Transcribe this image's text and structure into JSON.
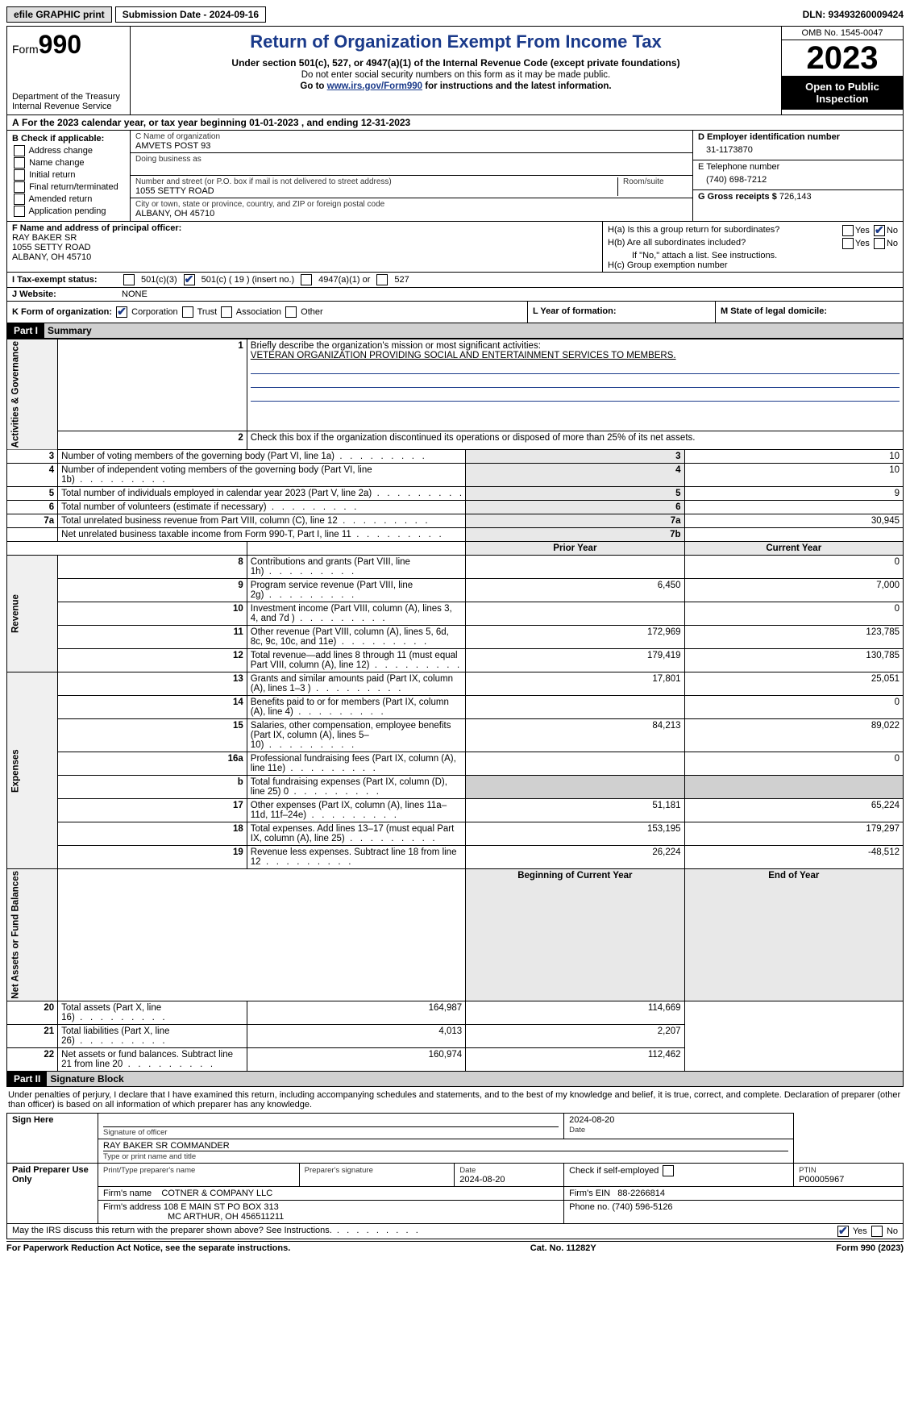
{
  "topbar": {
    "efile": "efile GRAPHIC print",
    "submission": "Submission Date - 2024-09-16",
    "dln": "DLN: 93493260009424"
  },
  "header": {
    "form_label": "Form",
    "form_no": "990",
    "dept": "Department of the Treasury Internal Revenue Service",
    "title": "Return of Organization Exempt From Income Tax",
    "subtitle": "Under section 501(c), 527, or 4947(a)(1) of the Internal Revenue Code (except private foundations)",
    "note1": "Do not enter social security numbers on this form as it may be made public.",
    "note2_a": "Go to ",
    "note2_link": "www.irs.gov/Form990",
    "note2_b": " for instructions and the latest information.",
    "omb": "OMB No. 1545-0047",
    "year": "2023",
    "open": "Open to Public Inspection"
  },
  "line_a": "For the 2023 calendar year, or tax year beginning 01-01-2023    , and ending 12-31-2023",
  "box_b": {
    "label": "B Check if applicable:",
    "items": [
      "Address change",
      "Name change",
      "Initial return",
      "Final return/terminated",
      "Amended return",
      "Application pending"
    ]
  },
  "box_c": {
    "name_label": "C Name of organization",
    "name": "AMVETS POST 93",
    "dba_label": "Doing business as",
    "street_label": "Number and street (or P.O. box if mail is not delivered to street address)",
    "room_label": "Room/suite",
    "street": "1055 SETTY ROAD",
    "city_label": "City or town, state or province, country, and ZIP or foreign postal code",
    "city": "ALBANY, OH  45710"
  },
  "box_d": {
    "label": "D Employer identification number",
    "val": "31-1173870"
  },
  "box_e": {
    "label": "E Telephone number",
    "val": "(740) 698-7212"
  },
  "box_g": {
    "label": "G Gross receipts $",
    "val": "726,143"
  },
  "box_f": {
    "label": "F  Name and address of principal officer:",
    "name": "RAY BAKER SR",
    "addr1": "1055 SETTY ROAD",
    "addr2": "ALBANY, OH  45710"
  },
  "box_h": {
    "ha": "H(a)  Is this a group return for subordinates?",
    "hb": "H(b)  Are all subordinates included?",
    "hb_note": "If \"No,\" attach a list. See instructions.",
    "hc": "H(c)  Group exemption number",
    "yes": "Yes",
    "no": "No"
  },
  "line_i": {
    "label": "I   Tax-exempt status:",
    "c3": "501(c)(3)",
    "c": "501(c) ( 19 ) (insert no.)",
    "a1": "4947(a)(1) or",
    "s527": "527"
  },
  "line_j": {
    "label": "J   Website:",
    "val": "NONE"
  },
  "line_k": {
    "label": "K Form of organization:",
    "corp": "Corporation",
    "trust": "Trust",
    "assoc": "Association",
    "other": "Other"
  },
  "line_l": "L Year of formation:",
  "line_m": "M State of legal domicile:",
  "part1": {
    "tag": "Part I",
    "title": "Summary"
  },
  "summary": {
    "q1_label": "Briefly describe the organization's mission or most significant activities:",
    "q1_text": "VETERAN ORGANIZATION PROVIDING SOCIAL AND ENTERTAINMENT SERVICES TO MEMBERS.",
    "q2": "Check this box      if the organization discontinued its operations or disposed of more than 25% of its net assets.",
    "rows_top": [
      {
        "n": "3",
        "t": "Number of voting members of the governing body (Part VI, line 1a)",
        "b": "3",
        "v": "10"
      },
      {
        "n": "4",
        "t": "Number of independent voting members of the governing body (Part VI, line 1b)",
        "b": "4",
        "v": "10"
      },
      {
        "n": "5",
        "t": "Total number of individuals employed in calendar year 2023 (Part V, line 2a)",
        "b": "5",
        "v": "9"
      },
      {
        "n": "6",
        "t": "Total number of volunteers (estimate if necessary)",
        "b": "6",
        "v": ""
      },
      {
        "n": "7a",
        "t": "Total unrelated business revenue from Part VIII, column (C), line 12",
        "b": "7a",
        "v": "30,945"
      },
      {
        "n": "",
        "t": "Net unrelated business taxable income from Form 990-T, Part I, line 11",
        "b": "7b",
        "v": ""
      }
    ],
    "hdr_prior": "Prior Year",
    "hdr_curr": "Current Year",
    "hdr_beg": "Beginning of Current Year",
    "hdr_end": "End of Year",
    "rev": [
      {
        "n": "8",
        "t": "Contributions and grants (Part VIII, line 1h)",
        "p": "",
        "c": "0"
      },
      {
        "n": "9",
        "t": "Program service revenue (Part VIII, line 2g)",
        "p": "6,450",
        "c": "7,000"
      },
      {
        "n": "10",
        "t": "Investment income (Part VIII, column (A), lines 3, 4, and 7d )",
        "p": "",
        "c": "0"
      },
      {
        "n": "11",
        "t": "Other revenue (Part VIII, column (A), lines 5, 6d, 8c, 9c, 10c, and 11e)",
        "p": "172,969",
        "c": "123,785"
      },
      {
        "n": "12",
        "t": "Total revenue—add lines 8 through 11 (must equal Part VIII, column (A), line 12)",
        "p": "179,419",
        "c": "130,785"
      }
    ],
    "exp": [
      {
        "n": "13",
        "t": "Grants and similar amounts paid (Part IX, column (A), lines 1–3 )",
        "p": "17,801",
        "c": "25,051"
      },
      {
        "n": "14",
        "t": "Benefits paid to or for members (Part IX, column (A), line 4)",
        "p": "",
        "c": "0"
      },
      {
        "n": "15",
        "t": "Salaries, other compensation, employee benefits (Part IX, column (A), lines 5–10)",
        "p": "84,213",
        "c": "89,022"
      },
      {
        "n": "16a",
        "t": "Professional fundraising fees (Part IX, column (A), line 11e)",
        "p": "",
        "c": "0"
      },
      {
        "n": "b",
        "t": "Total fundraising expenses (Part IX, column (D), line 25) 0",
        "p": "SHADE",
        "c": "SHADE"
      },
      {
        "n": "17",
        "t": "Other expenses (Part IX, column (A), lines 11a–11d, 11f–24e)",
        "p": "51,181",
        "c": "65,224"
      },
      {
        "n": "18",
        "t": "Total expenses. Add lines 13–17 (must equal Part IX, column (A), line 25)",
        "p": "153,195",
        "c": "179,297"
      },
      {
        "n": "19",
        "t": "Revenue less expenses. Subtract line 18 from line 12",
        "p": "26,224",
        "c": "-48,512"
      }
    ],
    "net": [
      {
        "n": "20",
        "t": "Total assets (Part X, line 16)",
        "p": "164,987",
        "c": "114,669"
      },
      {
        "n": "21",
        "t": "Total liabilities (Part X, line 26)",
        "p": "4,013",
        "c": "2,207"
      },
      {
        "n": "22",
        "t": "Net assets or fund balances. Subtract line 21 from line 20",
        "p": "160,974",
        "c": "112,462"
      }
    ],
    "vert_gov": "Activities & Governance",
    "vert_rev": "Revenue",
    "vert_exp": "Expenses",
    "vert_net": "Net Assets or Fund Balances"
  },
  "part2": {
    "tag": "Part II",
    "title": "Signature Block"
  },
  "sig": {
    "declare": "Under penalties of perjury, I declare that I have examined this return, including accompanying schedules and statements, and to the best of my knowledge and belief, it is true, correct, and complete. Declaration of preparer (other than officer) is based on all information of which preparer has any knowledge.",
    "sign_here": "Sign Here",
    "sig_off": "Signature of officer",
    "date": "Date",
    "date_val": "2024-08-20",
    "name_title": "RAY BAKER SR  COMMANDER",
    "type_name": "Type or print name and title",
    "paid": "Paid Preparer Use Only",
    "prep_name_lbl": "Print/Type preparer's name",
    "prep_sig_lbl": "Preparer's signature",
    "prep_date": "2024-08-20",
    "self_emp": "Check       if self-employed",
    "ptin_lbl": "PTIN",
    "ptin": "P00005967",
    "firm_name_lbl": "Firm's name",
    "firm_name": "COTNER & COMPANY LLC",
    "firm_ein_lbl": "Firm's EIN",
    "firm_ein": "88-2266814",
    "firm_addr_lbl": "Firm's address",
    "firm_addr": "108 E MAIN ST PO BOX 313",
    "firm_city": "MC ARTHUR, OH  456511211",
    "phone_lbl": "Phone no.",
    "phone": "(740) 596-5126",
    "discuss": "May the IRS discuss this return with the preparer shown above? See Instructions."
  },
  "footer": {
    "left": "For Paperwork Reduction Act Notice, see the separate instructions.",
    "mid": "Cat. No. 11282Y",
    "right": "Form 990 (2023)"
  }
}
